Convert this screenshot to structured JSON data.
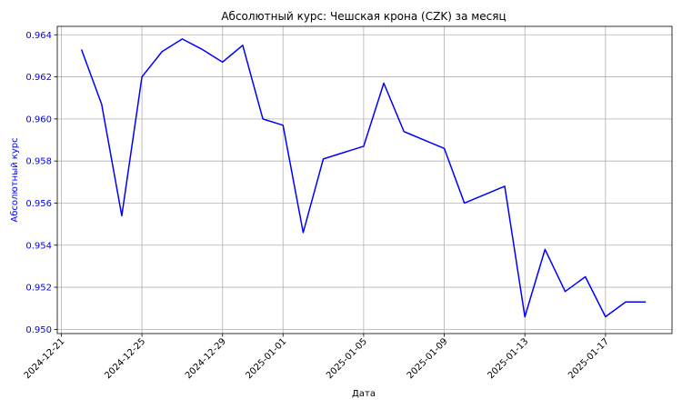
{
  "chart_data": {
    "type": "line",
    "title": "Абсолютный курс: Чешская крона (CZK) за месяц",
    "xlabel": "Дата",
    "ylabel": "Абсолютный курс",
    "series_color": "#0000ff",
    "ylabel_color": "#0000ff",
    "ytick_color": "#0000ff",
    "grid": true,
    "xlim": [
      "2024-12-20.8",
      "2025-01-20.3"
    ],
    "ylim": [
      0.9498,
      0.9644
    ],
    "yticks": [
      0.95,
      0.952,
      0.954,
      0.956,
      0.958,
      0.96,
      0.962,
      0.964
    ],
    "ytick_labels": [
      "0.950",
      "0.952",
      "0.954",
      "0.956",
      "0.958",
      "0.960",
      "0.962",
      "0.964"
    ],
    "xticks": [
      "2024-12-21",
      "2024-12-25",
      "2024-12-29",
      "2025-01-01",
      "2025-01-05",
      "2025-01-09",
      "2025-01-13",
      "2025-01-17"
    ],
    "series": [
      {
        "name": "CZK",
        "x": [
          "2024-12-22",
          "2024-12-23",
          "2024-12-24",
          "2024-12-25",
          "2024-12-26",
          "2024-12-27",
          "2024-12-28",
          "2024-12-29",
          "2024-12-30",
          "2024-12-31",
          "2025-01-01",
          "2025-01-02",
          "2025-01-03",
          "2025-01-04",
          "2025-01-05",
          "2025-01-06",
          "2025-01-07",
          "2025-01-08",
          "2025-01-09",
          "2025-01-10",
          "2025-01-11",
          "2025-01-12",
          "2025-01-13",
          "2025-01-14",
          "2025-01-15",
          "2025-01-16",
          "2025-01-17",
          "2025-01-18",
          "2025-01-19"
        ],
        "values": [
          0.9633,
          0.9607,
          0.9554,
          0.962,
          0.9632,
          0.9638,
          0.9633,
          0.9627,
          0.9635,
          0.96,
          0.9597,
          0.9546,
          0.9581,
          0.9584,
          0.9587,
          0.9617,
          0.9594,
          0.959,
          0.9586,
          0.956,
          0.9564,
          0.9568,
          0.9506,
          0.9538,
          0.9518,
          0.9525,
          0.9506,
          0.9513,
          0.9513
        ]
      }
    ]
  }
}
